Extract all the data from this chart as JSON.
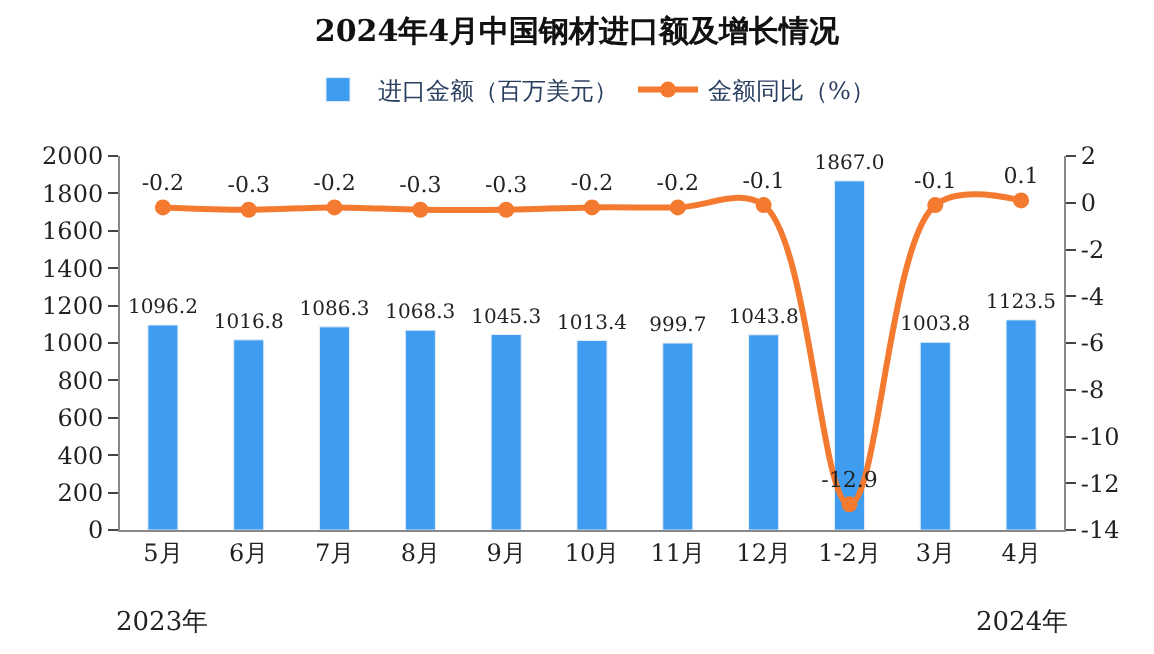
{
  "chart_data": {
    "type": "bar",
    "title": "2024年4月中国钢材进口额及增长情况",
    "categories": [
      "5月",
      "6月",
      "7月",
      "8月",
      "9月",
      "10月",
      "11月",
      "12月",
      "1-2月",
      "3月",
      "4月"
    ],
    "series": [
      {
        "name": "进口金额（百万美元）",
        "color": "#3e9df0",
        "values": [
          1096.2,
          1016.8,
          1086.3,
          1068.3,
          1045.3,
          1013.4,
          999.7,
          1043.8,
          1867.0,
          1003.8,
          1123.5
        ],
        "value_labels": [
          "1096.2",
          "1016.8",
          "1086.3",
          "1068.3",
          "1045.3",
          "1013.4",
          "999.7",
          "1043.8",
          "1867.0",
          "1003.8",
          "1123.5"
        ]
      },
      {
        "name": "金额同比（%）",
        "type": "line",
        "axis": "y2",
        "color": "#f47a30",
        "marker": "circle",
        "values": [
          -0.2,
          -0.3,
          -0.2,
          -0.3,
          -0.3,
          -0.2,
          -0.2,
          -0.1,
          -12.9,
          -0.1,
          0.1
        ],
        "value_labels": [
          "-0.2",
          "-0.3",
          "-0.2",
          "-0.3",
          "-0.3",
          "-0.2",
          "-0.2",
          "-0.1",
          "-12.9",
          "-0.1",
          "0.1"
        ]
      }
    ],
    "ylim": [
      0,
      2000
    ],
    "yticks": [
      0,
      200,
      400,
      600,
      800,
      1000,
      1200,
      1400,
      1600,
      1800,
      2000
    ],
    "y2lim": [
      -14,
      2
    ],
    "y2ticks": [
      -14,
      -12,
      -10,
      -8,
      -6,
      -4,
      -2,
      0,
      2
    ],
    "legend": "top",
    "annotations": [
      "2023年",
      "2024年"
    ]
  }
}
